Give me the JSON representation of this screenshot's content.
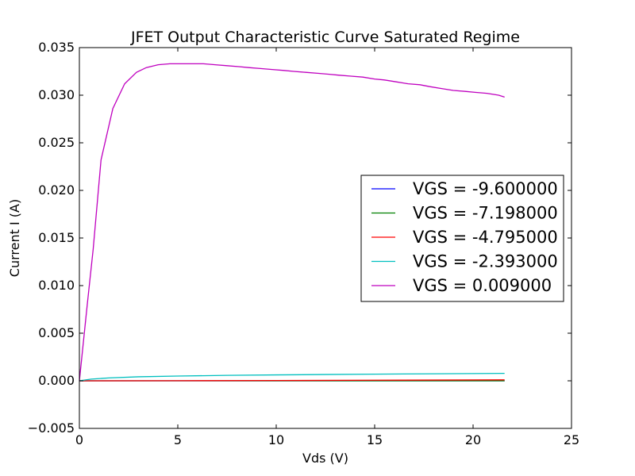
{
  "chart_data": {
    "type": "line",
    "title": "JFET Output Characteristic Curve Saturated Regime",
    "xlabel": "Vds (V)",
    "ylabel": "Current I (A)",
    "xlim": [
      0,
      25
    ],
    "ylim": [
      -0.005,
      0.035
    ],
    "x_ticks": [
      0,
      5,
      10,
      15,
      20,
      25
    ],
    "x_tick_labels": [
      "0",
      "5",
      "10",
      "15",
      "20",
      "25"
    ],
    "y_ticks": [
      -0.005,
      0.0,
      0.005,
      0.01,
      0.015,
      0.02,
      0.025,
      0.03,
      0.035
    ],
    "y_tick_labels": [
      "−0.005",
      "0.000",
      "0.005",
      "0.010",
      "0.015",
      "0.020",
      "0.025",
      "0.030",
      "0.035"
    ],
    "grid": false,
    "legend_position": "center-right",
    "series": [
      {
        "name": "VGS = -9.600000",
        "color": "#0000ff",
        "x": [
          0,
          5,
          10,
          15,
          20,
          21.6
        ],
        "y": [
          0,
          0,
          0,
          0,
          0,
          0
        ]
      },
      {
        "name": "VGS = -7.198000",
        "color": "#008000",
        "x": [
          0,
          5,
          10,
          15,
          20,
          21.6
        ],
        "y": [
          0,
          0,
          0,
          0,
          0,
          0
        ]
      },
      {
        "name": "VGS = -4.795000",
        "color": "#ff0000",
        "x": [
          0,
          5,
          10,
          15,
          20,
          21.6
        ],
        "y": [
          0,
          1e-05,
          3e-05,
          6e-05,
          9e-05,
          0.0001
        ]
      },
      {
        "name": "VGS = -2.393000",
        "color": "#00bfbf",
        "x": [
          0,
          0.6,
          1.5,
          3,
          5,
          7.5,
          10,
          12.5,
          15,
          17.5,
          20,
          21.6
        ],
        "y": [
          0,
          0.00018,
          0.0003,
          0.00042,
          0.0005,
          0.00057,
          0.00062,
          0.00066,
          0.0007,
          0.00073,
          0.00076,
          0.00078
        ]
      },
      {
        "name": "VGS = 0.009000",
        "color": "#bf00bf",
        "x": [
          0,
          0.4,
          0.7,
          1.1,
          1.7,
          2.3,
          2.9,
          3.4,
          4.0,
          4.6,
          5.2,
          5.8,
          6.3,
          6.9,
          7.5,
          8.1,
          8.6,
          9.2,
          9.8,
          10.4,
          10.9,
          11.5,
          12.1,
          12.7,
          13.2,
          13.8,
          14.4,
          15.0,
          15.5,
          16.1,
          16.7,
          17.3,
          17.8,
          18.4,
          19.0,
          19.6,
          20.1,
          20.7,
          21.3,
          21.6
        ],
        "y": [
          0,
          0.008,
          0.0138,
          0.0232,
          0.0286,
          0.0312,
          0.0324,
          0.0329,
          0.0332,
          0.0333,
          0.0333,
          0.0333,
          0.0333,
          0.0332,
          0.0331,
          0.033,
          0.0329,
          0.0328,
          0.0327,
          0.0326,
          0.0325,
          0.0324,
          0.0323,
          0.0322,
          0.0321,
          0.032,
          0.0319,
          0.0317,
          0.0316,
          0.0314,
          0.0312,
          0.0311,
          0.0309,
          0.0307,
          0.0305,
          0.0304,
          0.0303,
          0.0302,
          0.03,
          0.0298
        ]
      }
    ]
  }
}
